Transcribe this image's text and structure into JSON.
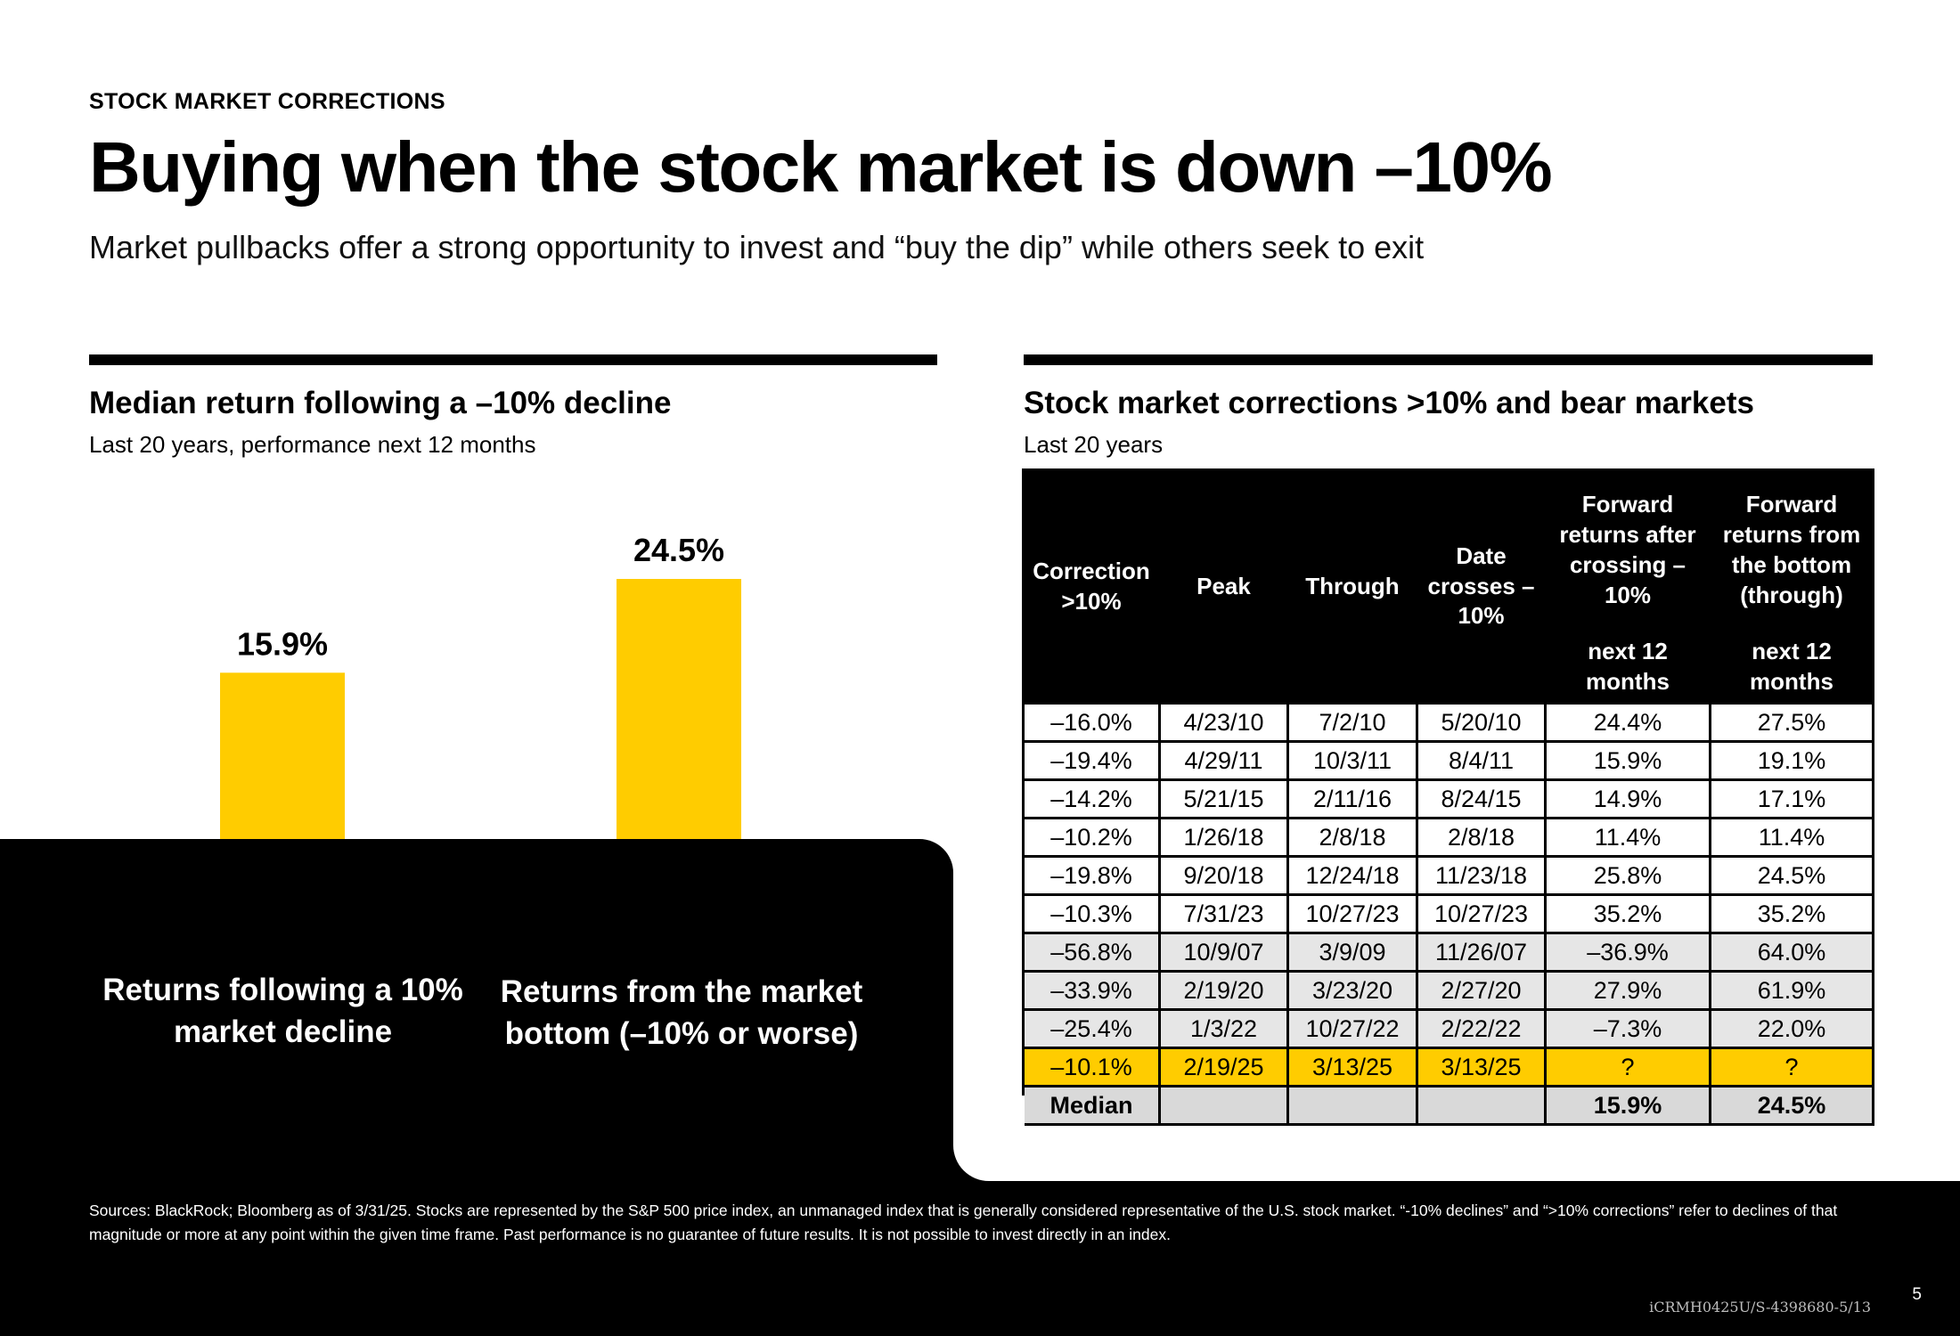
{
  "header": {
    "eyebrow": "STOCK MARKET CORRECTIONS",
    "title": "Buying when the stock market is down –10%",
    "subtitle": "Market pullbacks offer a strong opportunity to invest and “buy the dip” while others seek to exit"
  },
  "left_panel": {
    "title": "Median return following a –10% decline",
    "subtitle": "Last 20 years, performance next 12 months"
  },
  "right_panel": {
    "title": "Stock market corrections >10% and bear markets",
    "subtitle": "Last 20 years"
  },
  "colors": {
    "accent": "#ffcc00",
    "dark": "#000000",
    "row_alt": "#e6e6e6",
    "median_row": "#d9d9d9"
  },
  "chart_data": [
    {
      "type": "bar",
      "categories": [
        "Returns following a 10% market decline",
        "Returns from the market bottom (–10% or worse)"
      ],
      "values": [
        15.9,
        24.5
      ],
      "value_labels": [
        "15.9%",
        "24.5%"
      ],
      "unit": "%",
      "title": "Median return following a –10% decline",
      "subtitle": "Last 20 years, performance next 12 months",
      "color": "#ffcc00",
      "ylim": [
        0,
        30
      ],
      "grid": false
    },
    {
      "type": "table",
      "title": "Stock market corrections >10% and bear markets",
      "subtitle": "Last 20 years",
      "headers": {
        "correction": "Correction >10%",
        "peak": "Peak",
        "through": "Through",
        "date_crosses": "Date crosses –10%",
        "fwd_after": "Forward returns after crossing –10%",
        "fwd_bottom": "Forward returns from the bottom (through)",
        "period_after": "next 12 months",
        "period_bottom": "next 12 months"
      },
      "rows": [
        [
          "–16.0%",
          "4/23/10",
          "7/2/10",
          "5/20/10",
          "24.4%",
          "27.5%"
        ],
        [
          "–19.4%",
          "4/29/11",
          "10/3/11",
          "8/4/11",
          "15.9%",
          "19.1%"
        ],
        [
          "–14.2%",
          "5/21/15",
          "2/11/16",
          "8/24/15",
          "14.9%",
          "17.1%"
        ],
        [
          "–10.2%",
          "1/26/18",
          "2/8/18",
          "2/8/18",
          "11.4%",
          "11.4%"
        ],
        [
          "–19.8%",
          "9/20/18",
          "12/24/18",
          "11/23/18",
          "25.8%",
          "24.5%"
        ],
        [
          "–10.3%",
          "7/31/23",
          "10/27/23",
          "10/27/23",
          "35.2%",
          "35.2%"
        ],
        [
          "–56.8%",
          "10/9/07",
          "3/9/09",
          "11/26/07",
          "–36.9%",
          "64.0%"
        ],
        [
          "–33.9%",
          "2/19/20",
          "3/23/20",
          "2/27/20",
          "27.9%",
          "61.9%"
        ],
        [
          "–25.4%",
          "1/3/22",
          "10/27/22",
          "2/22/22",
          "–7.3%",
          "22.0%"
        ],
        [
          "–10.1%",
          "2/19/25",
          "3/13/25",
          "3/13/25",
          "?",
          "?"
        ]
      ],
      "median_row": [
        "Median",
        "",
        "",
        "",
        "15.9%",
        "24.5%"
      ]
    }
  ],
  "footer": {
    "sources": "Sources: BlackRock; Bloomberg as of 3/31/25. Stocks are represented by the S&P 500 price index, an unmanaged index that is generally considered representative of the U.S. stock market. “-10% declines” and “>10% corrections” refer to declines of that magnitude or more at any point within the given time frame. Past performance is no guarantee of future results. It is not possible to invest directly in an index.",
    "code": "iCRMH0425U/S-4398680-5/13",
    "page_number": "5"
  }
}
